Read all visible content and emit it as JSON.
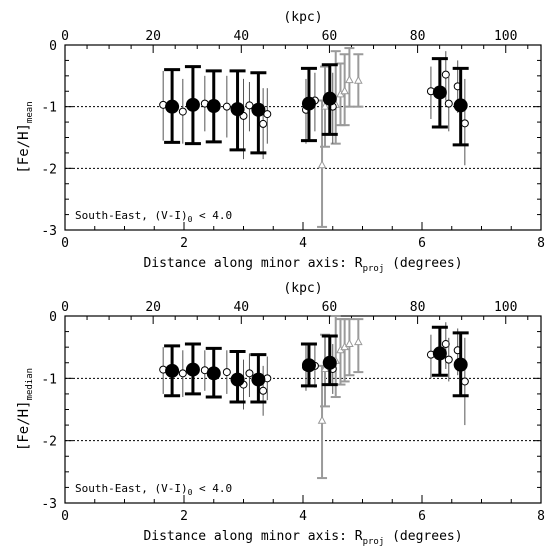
{
  "chart_data": [
    {
      "type": "scatter",
      "top_axis_label": "(kpc)",
      "top_ticks": [
        0,
        20,
        40,
        60,
        80,
        100
      ],
      "top_xlim": [
        0,
        108
      ],
      "xlabel": "Distance along minor axis: R",
      "xlabel_sub": "proj",
      "xlabel_suffix": " (degrees)",
      "ylabel_main": "[Fe/H]",
      "ylabel_sub": "mean",
      "xlim": [
        0,
        8
      ],
      "ylim": [
        -3,
        0
      ],
      "x_ticks": [
        0,
        2,
        4,
        6,
        8
      ],
      "y_ticks": [
        0,
        -1,
        -2,
        -3
      ],
      "reference_lines": [
        -1,
        -2
      ],
      "annotation": "South-East, (V-I)",
      "annotation_sub": "0",
      "annotation_suffix": " < 4.0",
      "series": [
        {
          "style": "filled-circle-thick-errorbar",
          "color": "#000000",
          "points": [
            {
              "x": 1.8,
              "y": -1.0,
              "lo": -1.58,
              "hi": -0.4
            },
            {
              "x": 2.15,
              "y": -0.97,
              "lo": -1.6,
              "hi": -0.35
            },
            {
              "x": 2.5,
              "y": -0.99,
              "lo": -1.57,
              "hi": -0.42
            },
            {
              "x": 2.9,
              "y": -1.04,
              "lo": -1.7,
              "hi": -0.42
            },
            {
              "x": 3.25,
              "y": -1.05,
              "lo": -1.75,
              "hi": -0.45
            },
            {
              "x": 4.1,
              "y": -0.95,
              "lo": -1.55,
              "hi": -0.38
            },
            {
              "x": 4.45,
              "y": -0.87,
              "lo": -1.45,
              "hi": -0.32
            },
            {
              "x": 6.3,
              "y": -0.77,
              "lo": -1.33,
              "hi": -0.22
            },
            {
              "x": 6.65,
              "y": -0.98,
              "lo": -1.62,
              "hi": -0.38
            }
          ]
        },
        {
          "style": "open-circle-thin-errorbar",
          "color": "#000000",
          "points": [
            {
              "x": 1.65,
              "y": -0.97,
              "lo": -1.55,
              "hi": -0.42
            },
            {
              "x": 1.98,
              "y": -1.08,
              "lo": -1.6,
              "hi": -0.55
            },
            {
              "x": 2.35,
              "y": -0.95,
              "lo": -1.4,
              "hi": -0.5
            },
            {
              "x": 2.72,
              "y": -1.0,
              "lo": -1.5,
              "hi": -0.5
            },
            {
              "x": 3.0,
              "y": -1.15,
              "lo": -1.85,
              "hi": -0.55
            },
            {
              "x": 3.1,
              "y": -0.98,
              "lo": -1.4,
              "hi": -0.6
            },
            {
              "x": 3.33,
              "y": -1.28,
              "lo": -1.85,
              "hi": -0.7
            },
            {
              "x": 3.4,
              "y": -1.12,
              "lo": -1.6,
              "hi": -0.7
            },
            {
              "x": 4.05,
              "y": -1.05,
              "lo": -1.6,
              "hi": -0.55
            },
            {
              "x": 4.2,
              "y": -0.9,
              "lo": -1.4,
              "hi": -0.45
            },
            {
              "x": 4.5,
              "y": -1.0,
              "lo": -1.6,
              "hi": -0.45
            },
            {
              "x": 6.15,
              "y": -0.75,
              "lo": -1.2,
              "hi": -0.35
            },
            {
              "x": 6.4,
              "y": -0.48,
              "lo": -0.9,
              "hi": -0.1
            },
            {
              "x": 6.45,
              "y": -0.95,
              "lo": -1.4,
              "hi": -0.5
            },
            {
              "x": 6.6,
              "y": -0.67,
              "lo": -1.1,
              "hi": -0.25
            },
            {
              "x": 6.72,
              "y": -1.27,
              "lo": -1.95,
              "hi": -0.55
            }
          ]
        },
        {
          "style": "gray-triangle-errorbar",
          "color": "#9a9a9a",
          "points": [
            {
              "x": 4.32,
              "y": -1.95,
              "lo": -2.95,
              "hi": -0.9
            },
            {
              "x": 4.37,
              "y": -1.0,
              "lo": -1.65,
              "hi": -0.35
            },
            {
              "x": 4.55,
              "y": -0.97,
              "lo": -1.6,
              "hi": -0.1
            },
            {
              "x": 4.63,
              "y": -0.8,
              "lo": -1.3,
              "hi": -0.3
            },
            {
              "x": 4.7,
              "y": -0.75,
              "lo": -1.3,
              "hi": -0.15
            },
            {
              "x": 4.78,
              "y": -0.57,
              "lo": -1.0,
              "hi": -0.05
            },
            {
              "x": 4.93,
              "y": -0.58,
              "lo": -1.0,
              "hi": -0.15
            }
          ]
        }
      ]
    },
    {
      "type": "scatter",
      "top_axis_label": "(kpc)",
      "top_ticks": [
        0,
        20,
        40,
        60,
        80,
        100
      ],
      "top_xlim": [
        0,
        108
      ],
      "xlabel": "Distance along minor axis: R",
      "xlabel_sub": "proj",
      "xlabel_suffix": " (degrees)",
      "ylabel_main": "[Fe/H]",
      "ylabel_sub": "median",
      "xlim": [
        0,
        8
      ],
      "ylim": [
        -3,
        0
      ],
      "x_ticks": [
        0,
        2,
        4,
        6,
        8
      ],
      "y_ticks": [
        0,
        -1,
        -2,
        -3
      ],
      "reference_lines": [
        -1,
        -2
      ],
      "annotation": "South-East, (V-I)",
      "annotation_sub": "0",
      "annotation_suffix": " < 4.0",
      "series": [
        {
          "style": "filled-circle-thick-errorbar",
          "color": "#000000",
          "points": [
            {
              "x": 1.8,
              "y": -0.88,
              "lo": -1.28,
              "hi": -0.48
            },
            {
              "x": 2.15,
              "y": -0.86,
              "lo": -1.25,
              "hi": -0.45
            },
            {
              "x": 2.5,
              "y": -0.92,
              "lo": -1.3,
              "hi": -0.52
            },
            {
              "x": 2.9,
              "y": -1.02,
              "lo": -1.38,
              "hi": -0.57
            },
            {
              "x": 3.25,
              "y": -1.02,
              "lo": -1.38,
              "hi": -0.62
            },
            {
              "x": 4.1,
              "y": -0.79,
              "lo": -1.12,
              "hi": -0.45
            },
            {
              "x": 4.45,
              "y": -0.75,
              "lo": -1.1,
              "hi": -0.32
            },
            {
              "x": 6.3,
              "y": -0.6,
              "lo": -0.95,
              "hi": -0.18
            },
            {
              "x": 6.65,
              "y": -0.78,
              "lo": -1.28,
              "hi": -0.27
            }
          ]
        },
        {
          "style": "open-circle-thin-errorbar",
          "color": "#000000",
          "points": [
            {
              "x": 1.65,
              "y": -0.86,
              "lo": -1.25,
              "hi": -0.5
            },
            {
              "x": 1.98,
              "y": -0.92,
              "lo": -1.3,
              "hi": -0.55
            },
            {
              "x": 2.35,
              "y": -0.87,
              "lo": -1.2,
              "hi": -0.55
            },
            {
              "x": 2.72,
              "y": -0.9,
              "lo": -1.25,
              "hi": -0.55
            },
            {
              "x": 3.0,
              "y": -1.1,
              "lo": -1.5,
              "hi": -0.7
            },
            {
              "x": 3.1,
              "y": -0.92,
              "lo": -1.3,
              "hi": -0.6
            },
            {
              "x": 3.33,
              "y": -1.2,
              "lo": -1.6,
              "hi": -0.8
            },
            {
              "x": 3.4,
              "y": -1.0,
              "lo": -1.35,
              "hi": -0.65
            },
            {
              "x": 4.05,
              "y": -0.82,
              "lo": -1.2,
              "hi": -0.45
            },
            {
              "x": 4.2,
              "y": -0.8,
              "lo": -1.15,
              "hi": -0.45
            },
            {
              "x": 4.5,
              "y": -0.85,
              "lo": -1.25,
              "hi": -0.45
            },
            {
              "x": 6.15,
              "y": -0.62,
              "lo": -1.0,
              "hi": -0.3
            },
            {
              "x": 6.4,
              "y": -0.45,
              "lo": -0.85,
              "hi": -0.1
            },
            {
              "x": 6.45,
              "y": -0.7,
              "lo": -1.05,
              "hi": -0.35
            },
            {
              "x": 6.6,
              "y": -0.55,
              "lo": -0.95,
              "hi": -0.2
            },
            {
              "x": 6.72,
              "y": -1.05,
              "lo": -1.75,
              "hi": -0.35
            }
          ]
        },
        {
          "style": "gray-triangle-errorbar",
          "color": "#9a9a9a",
          "points": [
            {
              "x": 4.32,
              "y": -1.68,
              "lo": -2.6,
              "hi": -0.8
            },
            {
              "x": 4.37,
              "y": -0.85,
              "lo": -1.45,
              "hi": -0.3
            },
            {
              "x": 4.55,
              "y": -0.72,
              "lo": -1.3,
              "hi": 0.0
            },
            {
              "x": 4.63,
              "y": -0.55,
              "lo": -1.1,
              "hi": -0.05
            },
            {
              "x": 4.7,
              "y": -0.5,
              "lo": -1.05,
              "hi": -0.05
            },
            {
              "x": 4.78,
              "y": -0.45,
              "lo": -0.95,
              "hi": -0.05
            },
            {
              "x": 4.93,
              "y": -0.42,
              "lo": -0.9,
              "hi": -0.05
            }
          ]
        }
      ]
    }
  ]
}
